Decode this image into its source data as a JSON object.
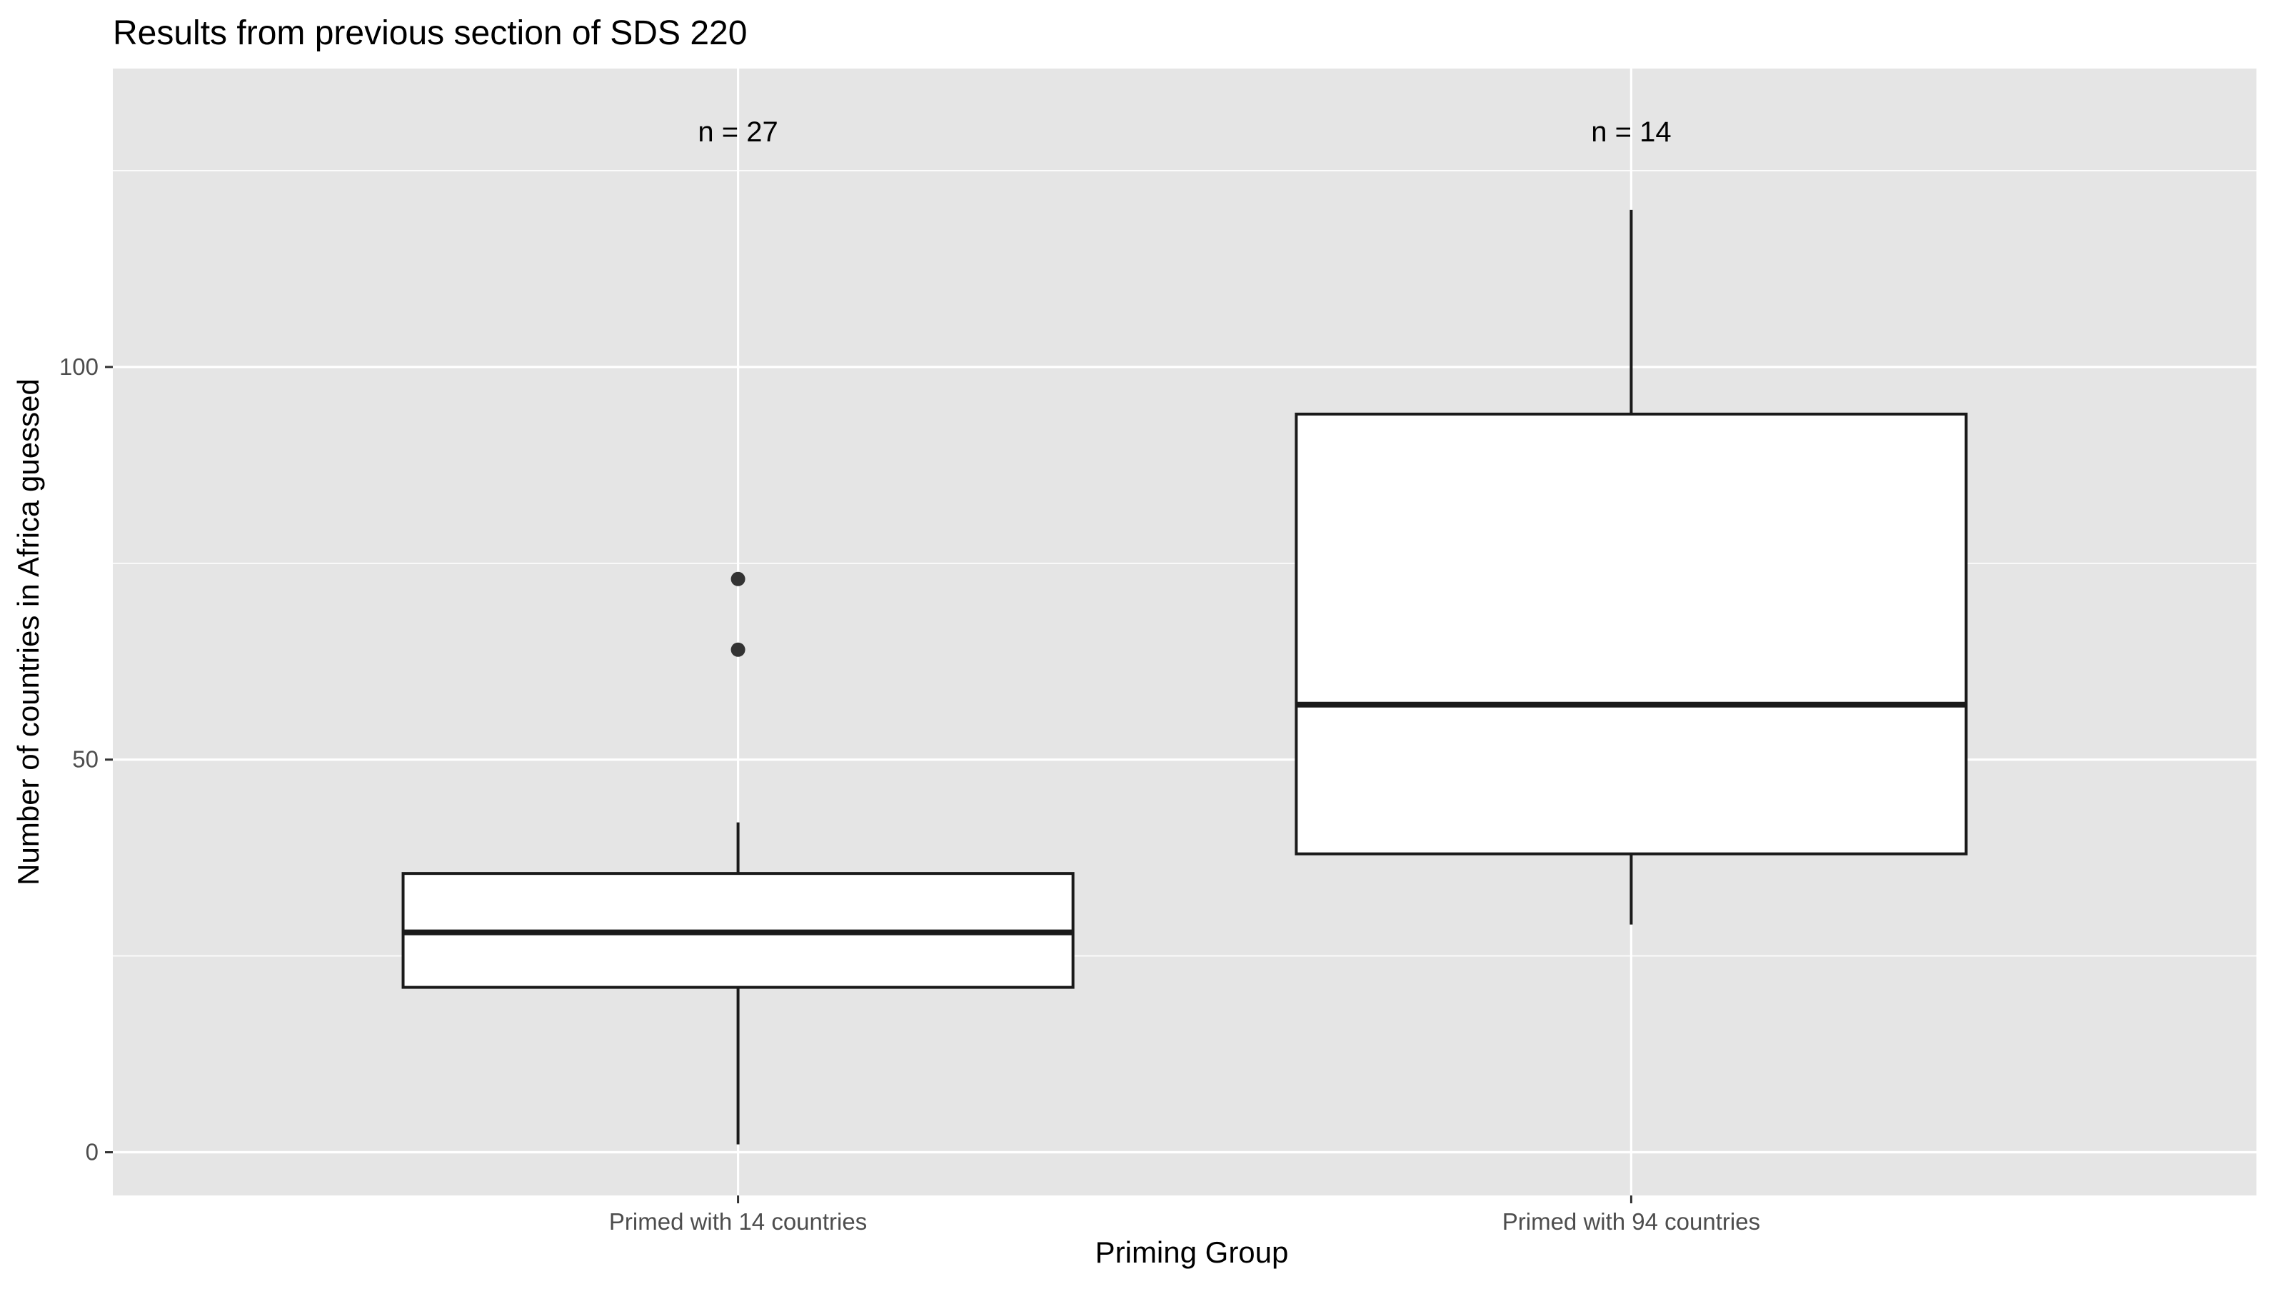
{
  "chart_data": {
    "type": "box",
    "title": "Results from previous section of SDS 220",
    "xlabel": "Priming Group",
    "ylabel": "Number of countries in Africa guessed",
    "ylim": [
      -5.5,
      138
    ],
    "yticks": [
      0,
      50,
      100
    ],
    "y_minor_ticks": [
      25,
      75,
      125
    ],
    "grid": true,
    "legend": "none",
    "colors": {
      "panel_background": "#e5e5e5",
      "grid": "#ffffff",
      "box_fill": "#ffffff",
      "box_stroke": "#1a1a1a",
      "outlier": "#333333"
    },
    "categories": [
      "Primed with 14 countries",
      "Primed with 94 countries"
    ],
    "boxes": [
      {
        "category": "Primed with 14 countries",
        "whisker_low": 1,
        "q1": 21,
        "median": 28,
        "q3": 35.5,
        "whisker_high": 42,
        "outliers": [
          64,
          73
        ],
        "n_label": "n = 27"
      },
      {
        "category": "Primed with 94 countries",
        "whisker_low": 29,
        "q1": 38,
        "median": 57,
        "q3": 94,
        "whisker_high": 120,
        "outliers": [],
        "n_label": "n = 14"
      }
    ],
    "n_label_y": 130
  }
}
